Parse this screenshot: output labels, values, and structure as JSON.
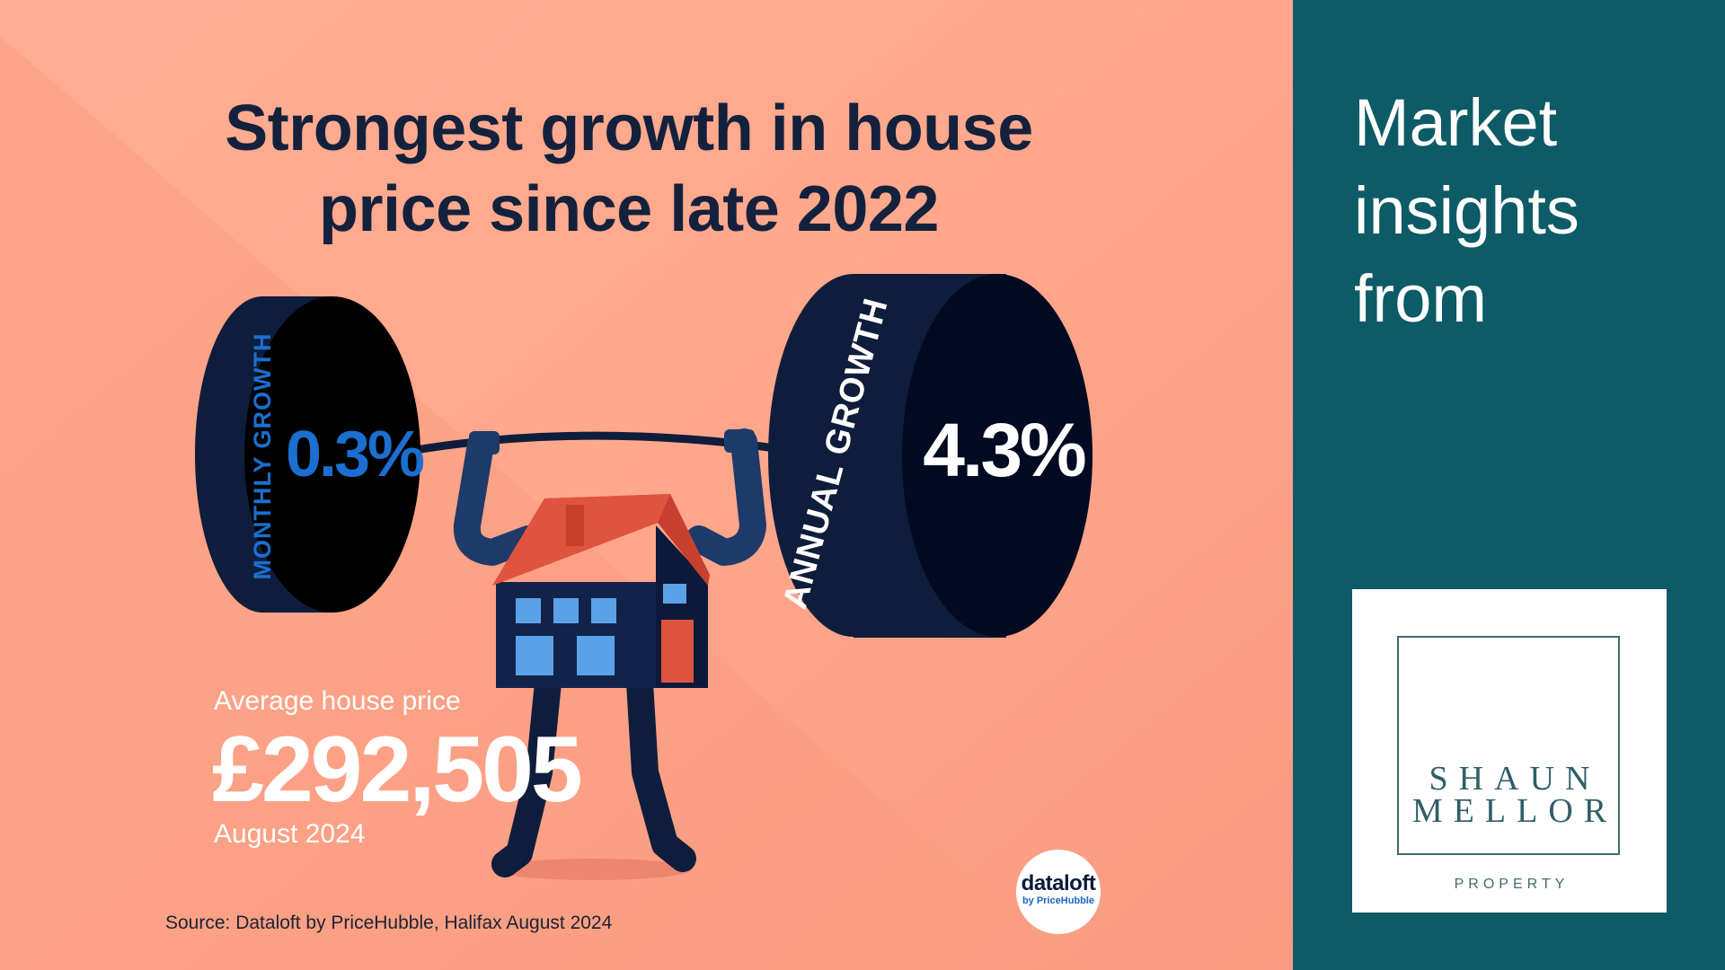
{
  "infographic": {
    "headline": [
      "Strongest growth in house",
      "price since late 2022"
    ],
    "plates": {
      "monthly": {
        "label": "MONTHLY GROWTH",
        "value": "0.3%"
      },
      "annual": {
        "label": "ANNUAL GROWTH",
        "value": "4.3%"
      }
    },
    "average_price": {
      "label": "Average house price",
      "value": "£292,505",
      "date": "August 2024"
    },
    "source": "Source: Dataloft by PriceHubble, Halifax August 2024",
    "badge": {
      "name": "dataloft",
      "sub": "by PriceHubble"
    },
    "illustration": "house-weightlifter"
  },
  "side_panel": {
    "title_lines": [
      "Market",
      "insights",
      "from"
    ],
    "logo": {
      "line1": "SHAUN",
      "line2": "MELLOR",
      "sub": "PROPERTY"
    }
  },
  "colors": {
    "background": "#ffaa8e",
    "panel": "#0d5b66",
    "navy": "#14213d",
    "accent_blue": "#1b6fd0",
    "roof_red": "#e0533f",
    "window_blue": "#5aa2e8"
  }
}
